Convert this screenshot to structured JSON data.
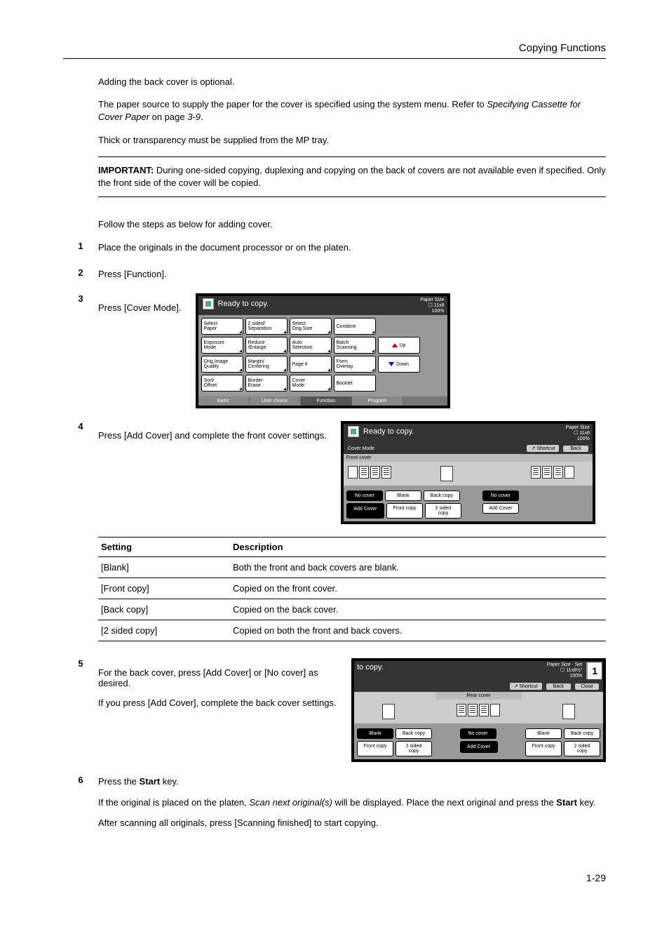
{
  "header": {
    "title": "Copying Functions"
  },
  "intro": {
    "p1": "Adding the back cover is optional.",
    "p2a": "The paper source to supply the paper for the cover is specified using the system menu. Refer to ",
    "p2_italic": "Specifying Cassette for Cover Paper",
    "p2b": " on page ",
    "p2_page": "3-9",
    "p3": "Thick or transparency must be supplied from the MP tray."
  },
  "important": {
    "label": "IMPORTANT:",
    "text": " During one-sided copying, duplexing and copying on the back of covers are not available even if specified. Only the front side of the cover will be copied."
  },
  "follow": "Follow the steps as below for adding cover.",
  "steps": {
    "s1": {
      "num": "1",
      "text": "Place the originals in the document processor or on the platen."
    },
    "s2": {
      "num": "2",
      "text": "Press [Function]."
    },
    "s3": {
      "num": "3",
      "text": "Press [Cover Mode]."
    },
    "s4": {
      "num": "4",
      "text": "Press [Add Cover] and complete the front cover settings."
    },
    "s5": {
      "num": "5",
      "text1": "For the back cover, press [Add Cover] or [No cover] as desired.",
      "text2": "If you press [Add Cover], complete the back cover settings."
    },
    "s6": {
      "num": "6",
      "text1a": "Press the ",
      "text1b": "Start",
      "text1c": " key.",
      "text2a": "If the original is placed on the platen, ",
      "text2b": "Scan next original(s)",
      "text2c": " will be displayed. Place the next original and press the ",
      "text2d": "Start",
      "text2e": " key.",
      "text3": "After scanning all originals, press [Scanning finished] to start copying."
    }
  },
  "screen1": {
    "title": "Ready to copy.",
    "ps1": "Paper Size",
    "ps2": "11x8",
    "ps3": "100%",
    "r1": [
      "Select\nPaper",
      "2 sided/\nSeparation",
      "Select\nOrig.Size",
      "Combine"
    ],
    "r2": [
      "Exposure\nMode",
      "Reduce\n/Enlarge",
      "Auto\nSelection",
      "Batch\nScanning"
    ],
    "r3": [
      "Orig.Image\nQuality",
      "Margin/\nCentering",
      "Page #",
      "Form\nOverlay"
    ],
    "r4": [
      "Sort/\nOffset",
      "Border\nErase",
      "Cover\nMode",
      "Booklet"
    ],
    "up": "Up",
    "down": "Down",
    "tabs": [
      "Basic",
      "User choice",
      "Function",
      "Program"
    ]
  },
  "screen2": {
    "title": "Ready to copy.",
    "ps1": "Paper Size",
    "ps2": "11x8",
    "ps3": "100%",
    "mode": "Cover Mode",
    "shortcut": "Shortcut",
    "back": "Back",
    "label": "Front cover",
    "opts_top": [
      "No cover",
      "Blank",
      "Back copy"
    ],
    "opts_bot": [
      "Add Cover",
      "Front copy",
      "2 sided\ncopy"
    ],
    "right_top": "No cover",
    "right_bot": "Add Cover"
  },
  "screen3": {
    "title": "to copy.",
    "ps1": "Paper Size",
    "ps2": "11x8½\"",
    "ps3": "100%",
    "set": "Set",
    "shortcut": "Shortcut",
    "back": "Back",
    "close": "Close",
    "label": "Rear cover",
    "col1_top": [
      "Blank",
      "Back copy"
    ],
    "col1_bot": [
      "Front copy",
      "2 sided\ncopy"
    ],
    "col2_top": "No cover",
    "col2_bot": "Add Cover",
    "col3_top": [
      "Blank",
      "Back copy"
    ],
    "col3_bot": [
      "Front copy",
      "2 sided\ncopy"
    ]
  },
  "table": {
    "h1": "Setting",
    "h2": "Description",
    "rows": [
      [
        "[Blank]",
        "Both the front and back covers are blank."
      ],
      [
        "[Front copy]",
        "Copied on the front cover."
      ],
      [
        "[Back copy]",
        "Copied on the back cover."
      ],
      [
        "[2 sided copy]",
        "Copied on both the front and back covers."
      ]
    ]
  },
  "pageNum": "1-29"
}
